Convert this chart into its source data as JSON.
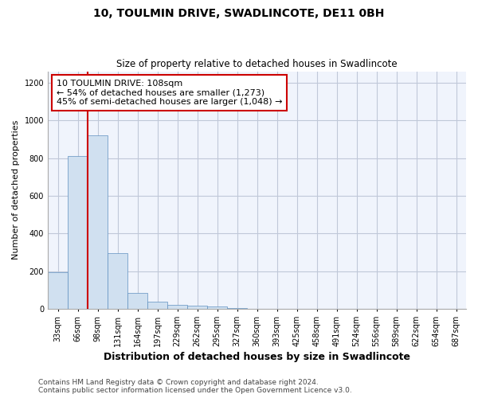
{
  "title": "10, TOULMIN DRIVE, SWADLINCOTE, DE11 0BH",
  "subtitle": "Size of property relative to detached houses in Swadlincote",
  "xlabel": "Distribution of detached houses by size in Swadlincote",
  "ylabel": "Number of detached properties",
  "bin_labels": [
    "33sqm",
    "66sqm",
    "98sqm",
    "131sqm",
    "164sqm",
    "197sqm",
    "229sqm",
    "262sqm",
    "295sqm",
    "327sqm",
    "360sqm",
    "393sqm",
    "425sqm",
    "458sqm",
    "491sqm",
    "524sqm",
    "556sqm",
    "589sqm",
    "622sqm",
    "654sqm",
    "687sqm"
  ],
  "bar_values": [
    193,
    810,
    920,
    295,
    85,
    38,
    20,
    15,
    11,
    5,
    0,
    0,
    0,
    0,
    0,
    0,
    0,
    0,
    0,
    0,
    0
  ],
  "bar_color": "#d0e0f0",
  "bar_edge_color": "#6090c0",
  "vline_color": "#cc0000",
  "annotation_text": "10 TOULMIN DRIVE: 108sqm\n← 54% of detached houses are smaller (1,273)\n45% of semi-detached houses are larger (1,048) →",
  "annotation_box_color": "#ffffff",
  "annotation_box_edge_color": "#cc0000",
  "ylim": [
    0,
    1260
  ],
  "yticks": [
    0,
    200,
    400,
    600,
    800,
    1000,
    1200
  ],
  "footer_line1": "Contains HM Land Registry data © Crown copyright and database right 2024.",
  "footer_line2": "Contains public sector information licensed under the Open Government Licence v3.0.",
  "bg_color": "#f0f4fc",
  "grid_color": "#c0c8d8",
  "title_fontsize": 10,
  "subtitle_fontsize": 8.5,
  "ylabel_fontsize": 8,
  "xlabel_fontsize": 9,
  "tick_fontsize": 7,
  "annotation_fontsize": 8,
  "footer_fontsize": 6.5
}
